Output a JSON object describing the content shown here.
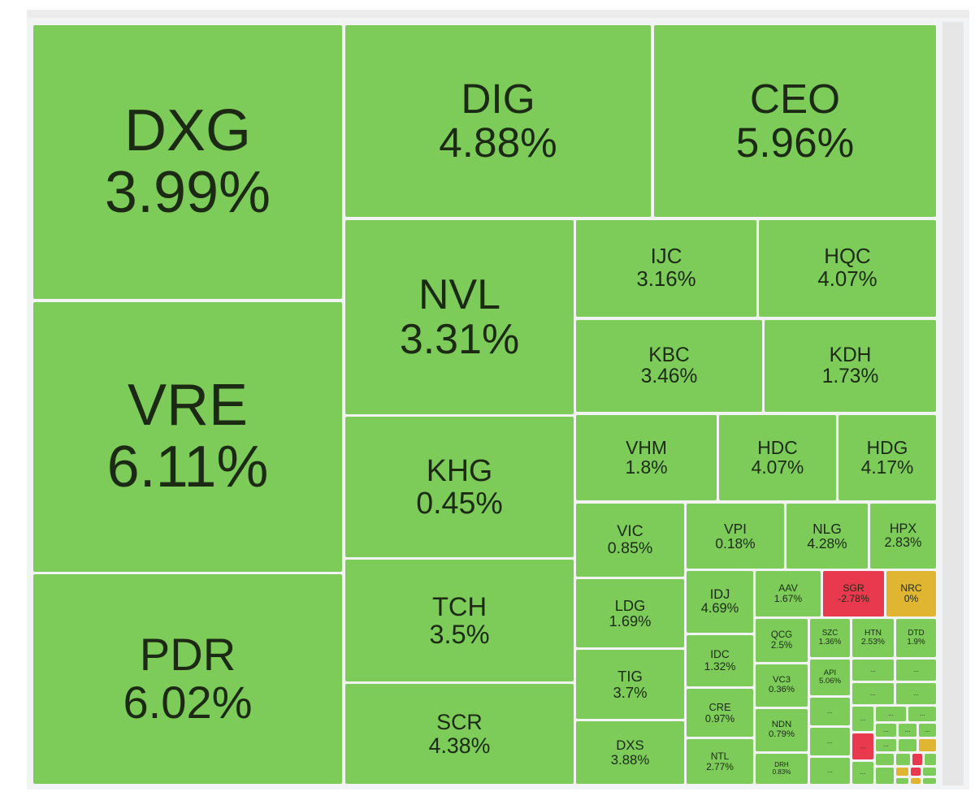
{
  "chart_data": {
    "type": "treemap",
    "categories": [
      "DXG",
      "VRE",
      "PDR",
      "DIG",
      "CEO",
      "NVL",
      "KHG",
      "TCH",
      "SCR",
      "IJC",
      "HQC",
      "KBC",
      "KDH",
      "VHM",
      "HDC",
      "HDG",
      "VIC",
      "VPI",
      "NLG",
      "HPX",
      "LDG",
      "TIG",
      "DXS",
      "IDJ",
      "IDC",
      "CRE",
      "NTL",
      "AAV",
      "SGR",
      "NRC",
      "QCG",
      "SZC",
      "HTN",
      "DTD",
      "VC3",
      "API",
      "NDN",
      "DRH"
    ],
    "values": [
      3.99,
      6.11,
      6.02,
      4.88,
      5.96,
      3.31,
      0.45,
      3.5,
      4.38,
      3.16,
      4.07,
      3.46,
      1.73,
      1.8,
      4.07,
      4.17,
      0.85,
      0.18,
      4.28,
      2.83,
      1.69,
      3.7,
      3.88,
      4.69,
      1.32,
      0.97,
      2.77,
      1.67,
      -2.78,
      0,
      2.5,
      1.36,
      2.53,
      1.9,
      0.36,
      5.06,
      0.79,
      0.83
    ],
    "value_labels": [
      "3.99%",
      "6.11%",
      "6.02%",
      "4.88%",
      "5.96%",
      "3.31%",
      "0.45%",
      "3.5%",
      "4.38%",
      "3.16%",
      "4.07%",
      "3.46%",
      "1.73%",
      "1.8%",
      "4.07%",
      "4.17%",
      "0.85%",
      "0.18%",
      "4.28%",
      "2.83%",
      "1.69%",
      "3.7%",
      "3.88%",
      "4.69%",
      "1.32%",
      "0.97%",
      "2.77%",
      "1.67%",
      "-2.78%",
      "0%",
      "2.5%",
      "1.36%",
      "2.53%",
      "1.9%",
      "0.36%",
      "5.06%",
      "0.79%",
      "0.83%"
    ],
    "overflow_label": "...",
    "color_up": "#7dcc5a",
    "color_down": "#e8394f",
    "color_flat": "#e0b531"
  }
}
